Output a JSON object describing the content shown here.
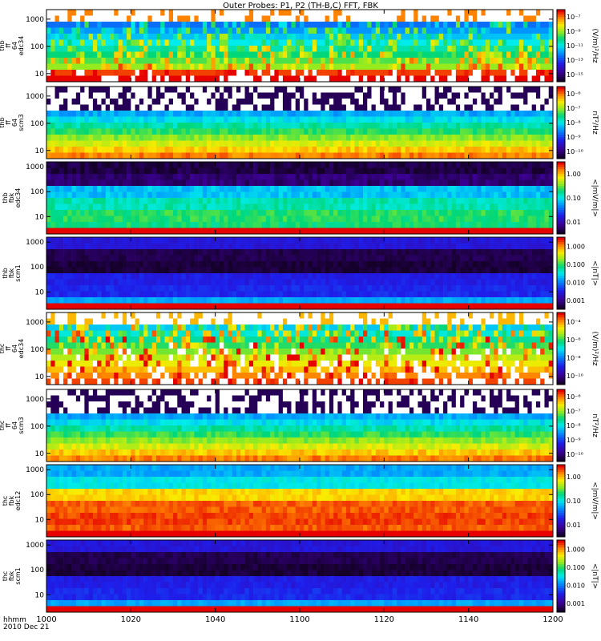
{
  "chart_data": {
    "type": "heatmap",
    "title": "Outer Probes: P1, P2 (TH-B,C) FFT, FBK",
    "x_axis": {
      "ticks": [
        "1000",
        "1020",
        "1040",
        "1100",
        "1120",
        "1140",
        "1200"
      ],
      "footer_lines": [
        "hhmm",
        "2010 Dec 21"
      ]
    },
    "panels": [
      {
        "label_lines": [
          "thb",
          "ff",
          "64",
          "edc34"
        ],
        "y_ticks": [
          "10",
          "100",
          "1000"
        ],
        "y_log_range": [
          0.7,
          3.35
        ],
        "cb_ticks": [
          "10⁻¹⁵",
          "10⁻¹³",
          "10⁻¹¹",
          "10⁻⁹",
          "10⁻⁷"
        ],
        "cb_unit": "(V/m)²/Hz",
        "pattern": "spiky"
      },
      {
        "label_lines": [
          "thb",
          "ff",
          "64",
          "scm3"
        ],
        "y_ticks": [
          "10",
          "100",
          "1000"
        ],
        "y_log_range": [
          0.7,
          3.35
        ],
        "cb_ticks": [
          "10⁻¹⁰",
          "10⁻⁹",
          "10⁻⁸",
          "10⁻⁷",
          "10⁻⁶"
        ],
        "cb_unit": "nT²/Hz",
        "pattern": "scm"
      },
      {
        "label_lines": [
          "thb",
          "fbk",
          "edc34"
        ],
        "y_ticks": [
          "10",
          "100",
          "1000"
        ],
        "y_log_range": [
          0.3,
          3.2
        ],
        "cb_ticks": [
          "0.01",
          "0.10",
          "1.00"
        ],
        "cb_unit": "<|mV/m|>",
        "pattern": "fbk_e"
      },
      {
        "label_lines": [
          "thb",
          "fbk",
          "scm1"
        ],
        "y_ticks": [
          "10",
          "100",
          "1000"
        ],
        "y_log_range": [
          0.3,
          3.2
        ],
        "cb_ticks": [
          "0.001",
          "0.010",
          "0.100",
          "1.000"
        ],
        "cb_unit": "<|nT|>",
        "pattern": "fbk_b"
      },
      {
        "label_lines": [
          "thc",
          "ff",
          "64",
          "edc34"
        ],
        "y_ticks": [
          "10",
          "100",
          "1000"
        ],
        "y_log_range": [
          0.7,
          3.35
        ],
        "cb_ticks": [
          "10⁻¹⁰",
          "10⁻⁸",
          "10⁻⁶",
          "10⁻⁴"
        ],
        "cb_unit": "(V/m)²/Hz",
        "pattern": "spiky_hot"
      },
      {
        "label_lines": [
          "thc",
          "ff",
          "64",
          "scm3"
        ],
        "y_ticks": [
          "10",
          "100",
          "1000"
        ],
        "y_log_range": [
          0.7,
          3.35
        ],
        "cb_ticks": [
          "10⁻¹⁰",
          "10⁻⁹",
          "10⁻⁸",
          "10⁻⁷",
          "10⁻⁶"
        ],
        "cb_unit": "nT²/Hz",
        "pattern": "scm"
      },
      {
        "label_lines": [
          "thc",
          "fbk",
          "edc12"
        ],
        "y_ticks": [
          "10",
          "100",
          "1000"
        ],
        "y_log_range": [
          0.3,
          3.2
        ],
        "cb_ticks": [
          "0.01",
          "0.10",
          "1.00"
        ],
        "cb_unit": "<|mV/m|>",
        "pattern": "fbk_e_hot"
      },
      {
        "label_lines": [
          "thc",
          "fbk",
          "scm1"
        ],
        "y_ticks": [
          "10",
          "100",
          "1000"
        ],
        "y_log_range": [
          0.3,
          3.2
        ],
        "cb_ticks": [
          "0.001",
          "0.010",
          "0.100",
          "1.000"
        ],
        "cb_unit": "<|nT|>",
        "pattern": "fbk_b"
      }
    ]
  }
}
